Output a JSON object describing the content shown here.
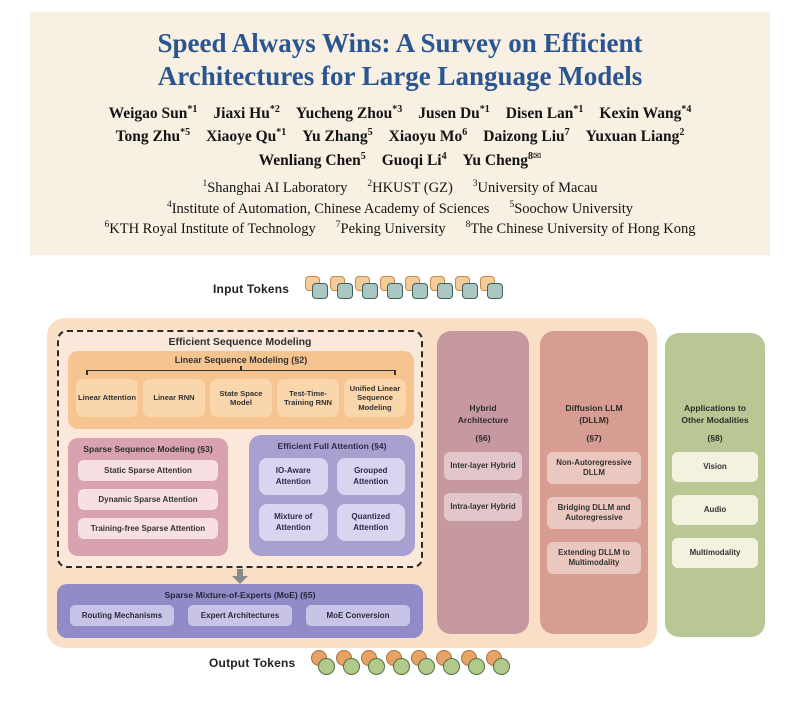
{
  "header": {
    "title_line1": "Speed Always Wins: A Survey on Efficient",
    "title_line2": "Architectures for Large Language Models",
    "author_rows": [
      [
        {
          "name": "Weigao Sun",
          "sup": "*1"
        },
        {
          "name": "Jiaxi Hu",
          "sup": "*2"
        },
        {
          "name": "Yucheng Zhou",
          "sup": "*3"
        },
        {
          "name": "Jusen Du",
          "sup": "*1"
        },
        {
          "name": "Disen Lan",
          "sup": "*1"
        },
        {
          "name": "Kexin Wang",
          "sup": "*4"
        }
      ],
      [
        {
          "name": "Tong Zhu",
          "sup": "*5"
        },
        {
          "name": "Xiaoye Qu",
          "sup": "*1"
        },
        {
          "name": "Yu Zhang",
          "sup": "5"
        },
        {
          "name": "Xiaoyu Mo",
          "sup": "6"
        },
        {
          "name": "Daizong Liu",
          "sup": "7"
        },
        {
          "name": "Yuxuan Liang",
          "sup": "2"
        }
      ],
      [
        {
          "name": "Wenliang Chen",
          "sup": "5"
        },
        {
          "name": "Guoqi Li",
          "sup": "4"
        },
        {
          "name": "Yu Cheng",
          "sup": "8",
          "mark": "✉"
        }
      ]
    ],
    "affiliation_rows": [
      [
        {
          "sup": "1",
          "text": "Shanghai AI Laboratory"
        },
        {
          "sup": "2",
          "text": "HKUST (GZ)"
        },
        {
          "sup": "3",
          "text": "University of Macau"
        }
      ],
      [
        {
          "sup": "4",
          "text": "Institute of Automation, Chinese Academy of Sciences"
        },
        {
          "sup": "5",
          "text": "Soochow University"
        }
      ],
      [
        {
          "sup": "6",
          "text": "KTH Royal Institute of Technology"
        },
        {
          "sup": "7",
          "text": "Peking University"
        },
        {
          "sup": "8",
          "text": "The Chinese University of Hong Kong"
        }
      ]
    ]
  },
  "figure": {
    "input_label": "Input Tokens",
    "output_label": "Output Tokens",
    "input_token_count": 8,
    "output_token_count": 8,
    "esm": {
      "title": "Efficient Sequence Modeling",
      "lsm": {
        "title": "Linear Sequence Modeling (§2)",
        "items": [
          "Linear Attention",
          "Linear RNN",
          "State Space Model",
          "Test-Time-Training RNN",
          "Unified Linear Sequence Modeling"
        ]
      },
      "ssm": {
        "title": "Sparse Sequence Modeling (§3)",
        "items": [
          "Static Sparse Attention",
          "Dynamic Sparse Attention",
          "Training-free Sparse Attention"
        ]
      },
      "efa": {
        "title": "Efficient Full Attention (§4)",
        "items": [
          "IO-Aware Attention",
          "Grouped Attention",
          "Mixture of Attention",
          "Quantized Attention"
        ]
      }
    },
    "moe": {
      "title": "Sparse Mixture-of-Experts (MoE) (§5)",
      "items": [
        "Routing Mechanisms",
        "Expert Architectures",
        "MoE Conversion"
      ]
    },
    "hybrid": {
      "title_lines": [
        "Hybrid",
        "Architecture"
      ],
      "section": "(§6)",
      "items": [
        "Inter-layer Hybrid",
        "Intra-layer Hybrid"
      ]
    },
    "dllm": {
      "title_lines": [
        "Diffusion LLM",
        "(DLLM)"
      ],
      "section": "(§7)",
      "items": [
        "Non-Autoregressive DLLM",
        "Bridging DLLM and Autoregressive",
        "Extending DLLM to Multimodality"
      ]
    },
    "apps": {
      "title_lines": [
        "Applications to",
        "Other Modalities"
      ],
      "section": "(§8)",
      "items": [
        "Vision",
        "Audio",
        "Multimodality"
      ]
    }
  },
  "colors": {
    "header_bg": "#f8f1e3",
    "title_blue": "#2b5590",
    "outer_peach": "#fadfc7",
    "dashed_fill": "#fbe8da",
    "lsm_parent": "#f6c491",
    "lsm_child": "#f9d6ab",
    "ssm_parent": "#d8a2ae",
    "ssm_child": "#f7dfe4",
    "efa_parent": "#a8a1cf",
    "efa_child": "#d9d4ef",
    "moe_parent": "#8f8cc7",
    "moe_child": "#c7c4e8",
    "hybrid_parent": "#c6989f",
    "hybrid_child": "#e3c6ca",
    "dllm_parent": "#d79d93",
    "dllm_child": "#ebc8bf",
    "apps_parent": "#b9c795",
    "apps_child": "#f3f2df",
    "token_square_back": "#f4cc9c",
    "token_square_front": "#aac7c3",
    "token_circle_back": "#e9a265",
    "token_circle_front": "#b2c98c",
    "arrow_gray": "#8a8a8a"
  }
}
